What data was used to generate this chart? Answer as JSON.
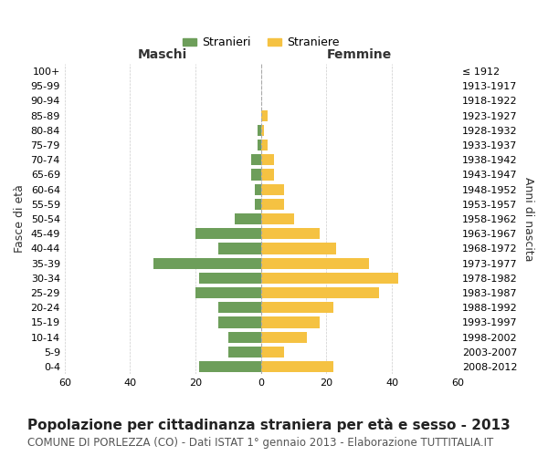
{
  "age_groups": [
    "0-4",
    "5-9",
    "10-14",
    "15-19",
    "20-24",
    "25-29",
    "30-34",
    "35-39",
    "40-44",
    "45-49",
    "50-54",
    "55-59",
    "60-64",
    "65-69",
    "70-74",
    "75-79",
    "80-84",
    "85-89",
    "90-94",
    "95-99",
    "100+"
  ],
  "birth_years": [
    "2008-2012",
    "2003-2007",
    "1998-2002",
    "1993-1997",
    "1988-1992",
    "1983-1987",
    "1978-1982",
    "1973-1977",
    "1968-1972",
    "1963-1967",
    "1958-1962",
    "1953-1957",
    "1948-1952",
    "1943-1947",
    "1938-1942",
    "1933-1937",
    "1928-1932",
    "1923-1927",
    "1918-1922",
    "1913-1917",
    "≤ 1912"
  ],
  "maschi": [
    19,
    10,
    10,
    13,
    13,
    20,
    19,
    33,
    13,
    20,
    8,
    2,
    2,
    3,
    3,
    1,
    1,
    0,
    0,
    0,
    0
  ],
  "femmine": [
    22,
    7,
    14,
    18,
    22,
    36,
    42,
    33,
    23,
    18,
    10,
    7,
    7,
    4,
    4,
    2,
    1,
    2,
    0,
    0,
    0
  ],
  "maschi_color": "#6d9e5a",
  "femmine_color": "#f5c242",
  "background_color": "#ffffff",
  "grid_color": "#cccccc",
  "title": "Popolazione per cittadinanza straniera per età e sesso - 2013",
  "subtitle": "COMUNE DI PORLEZZA (CO) - Dati ISTAT 1° gennaio 2013 - Elaborazione TUTTITALIA.IT",
  "xlabel_left": "Maschi",
  "xlabel_right": "Femmine",
  "ylabel_left": "Fasce di età",
  "ylabel_right": "Anni di nascita",
  "legend_maschi": "Stranieri",
  "legend_femmine": "Straniere",
  "xlim": 60,
  "title_fontsize": 11,
  "subtitle_fontsize": 8.5,
  "tick_fontsize": 8
}
